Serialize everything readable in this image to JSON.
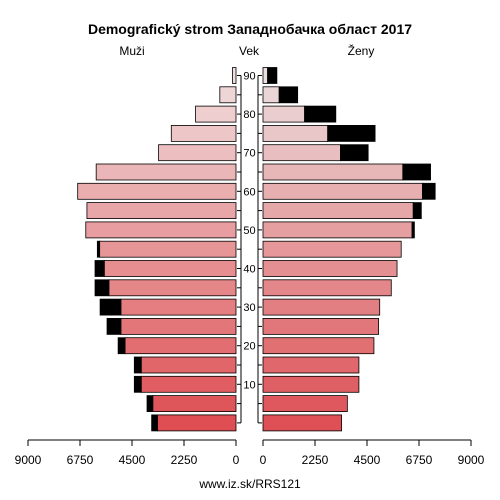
{
  "chart_data": {
    "type": "bar",
    "title": "Demografický strom Западнобачка област 2017",
    "left_label": "Muži",
    "center_label": "Vek",
    "right_label": "Ženy",
    "source": "www.iz.sk/RRS121",
    "age_groups": [
      "0-4",
      "5-9",
      "10-14",
      "15-19",
      "20-24",
      "25-29",
      "30-34",
      "35-39",
      "40-44",
      "45-49",
      "50-54",
      "55-59",
      "60-64",
      "65-69",
      "70-74",
      "75-79",
      "80-84",
      "85-89",
      "90+"
    ],
    "age_ticks": [
      10,
      20,
      30,
      40,
      50,
      60,
      70,
      80,
      90
    ],
    "x_ticks": [
      9000,
      6750,
      4500,
      2250,
      0
    ],
    "xlim": [
      0,
      9000
    ],
    "series": [
      {
        "name": "Muži",
        "values": [
          3400,
          3600,
          4100,
          4100,
          4800,
          4980,
          4980,
          5500,
          5700,
          5900,
          6500,
          6450,
          6850,
          6050,
          3350,
          2800,
          1750,
          700,
          150
        ]
      },
      {
        "name": "Muži – prebytok",
        "values": [
          250,
          250,
          300,
          300,
          300,
          600,
          900,
          600,
          400,
          100,
          0,
          0,
          0,
          0,
          0,
          0,
          0,
          0,
          0
        ]
      },
      {
        "name": "Ženy",
        "values": [
          3400,
          3650,
          4150,
          4150,
          4800,
          5000,
          5050,
          5550,
          5800,
          5980,
          6450,
          6500,
          6900,
          6050,
          3350,
          2800,
          1800,
          700,
          200
        ]
      },
      {
        "name": "Ženy – prebytok",
        "values": [
          0,
          0,
          0,
          0,
          0,
          0,
          0,
          0,
          0,
          0,
          100,
          350,
          550,
          1200,
          1200,
          2050,
          1350,
          800,
          400
        ]
      }
    ]
  }
}
